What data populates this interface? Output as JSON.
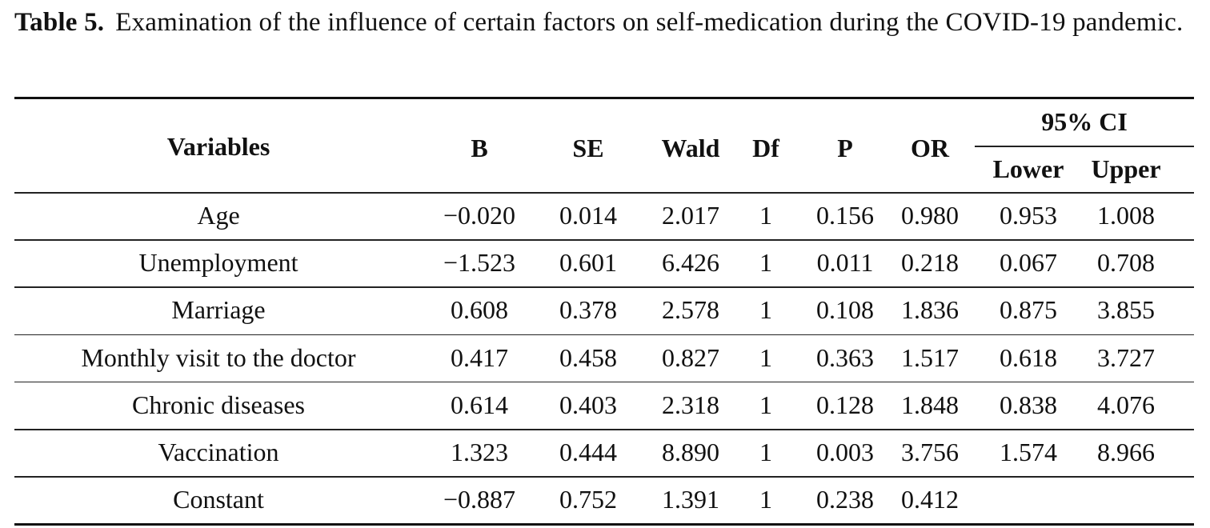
{
  "caption": {
    "label": "Table 5.",
    "text": "Examination of the influence of certain factors on self-medication during the COVID-19 pandemic."
  },
  "table": {
    "headers": {
      "variables": "Variables",
      "b": "B",
      "se": "SE",
      "wald": "Wald",
      "df": "Df",
      "p": "P",
      "or": "OR",
      "ci_group": "95% CI",
      "lower": "Lower",
      "upper": "Upper"
    },
    "rows": [
      {
        "variable": "Age",
        "b": "−0.020",
        "se": "0.014",
        "wald": "2.017",
        "df": "1",
        "p": "0.156",
        "or": "0.980",
        "lower": "0.953",
        "upper": "1.008"
      },
      {
        "variable": "Unemployment",
        "b": "−1.523",
        "se": "0.601",
        "wald": "6.426",
        "df": "1",
        "p": "0.011",
        "or": "0.218",
        "lower": "0.067",
        "upper": "0.708"
      },
      {
        "variable": "Marriage",
        "b": "0.608",
        "se": "0.378",
        "wald": "2.578",
        "df": "1",
        "p": "0.108",
        "or": "1.836",
        "lower": "0.875",
        "upper": "3.855"
      },
      {
        "variable": "Monthly visit to the doctor",
        "b": "0.417",
        "se": "0.458",
        "wald": "0.827",
        "df": "1",
        "p": "0.363",
        "or": "1.517",
        "lower": "0.618",
        "upper": "3.727"
      },
      {
        "variable": "Chronic diseases",
        "b": "0.614",
        "se": "0.403",
        "wald": "2.318",
        "df": "1",
        "p": "0.128",
        "or": "1.848",
        "lower": "0.838",
        "upper": "4.076"
      },
      {
        "variable": "Vaccination",
        "b": "1.323",
        "se": "0.444",
        "wald": "8.890",
        "df": "1",
        "p": "0.003",
        "or": "3.756",
        "lower": "1.574",
        "upper": "8.966"
      },
      {
        "variable": "Constant",
        "b": "−0.887",
        "se": "0.752",
        "wald": "1.391",
        "df": "1",
        "p": "0.238",
        "or": "0.412",
        "lower": "",
        "upper": ""
      }
    ]
  }
}
